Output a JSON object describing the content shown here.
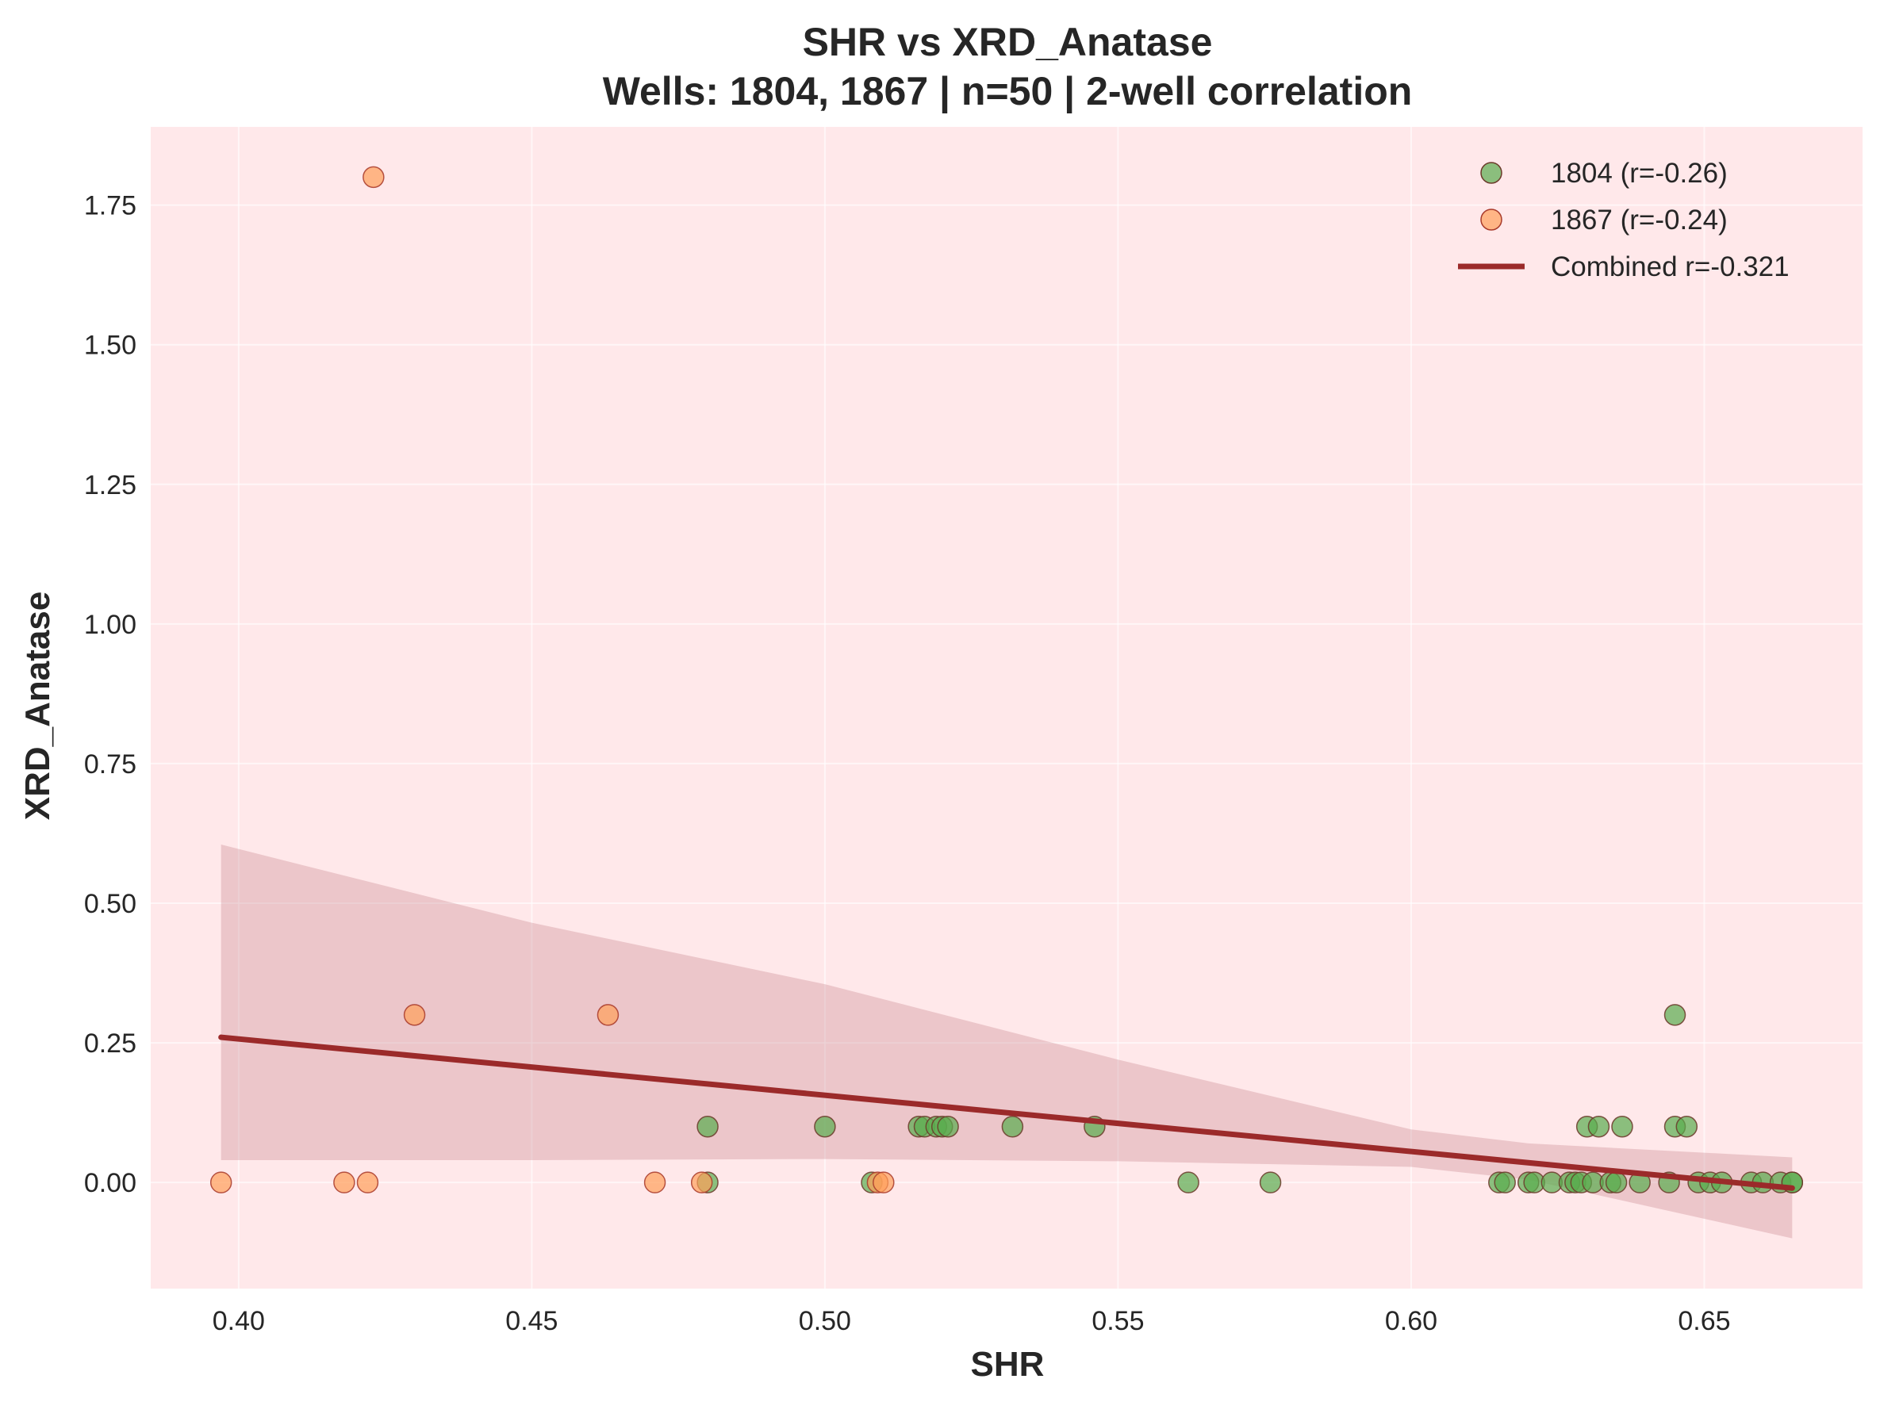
{
  "chart_data": {
    "type": "scatter",
    "title_line1": "SHR vs XRD_Anatase",
    "title_line2": "Wells: 1804, 1867 | n=50 | 2-well correlation",
    "xlabel": "SHR",
    "ylabel": "XRD_Anatase",
    "xlim": [
      0.385,
      0.677
    ],
    "ylim": [
      -0.19,
      1.89
    ],
    "xticks": [
      0.4,
      0.45,
      0.5,
      0.55,
      0.6,
      0.65
    ],
    "xtick_labels": [
      "0.40",
      "0.45",
      "0.50",
      "0.55",
      "0.60",
      "0.65"
    ],
    "yticks": [
      0.0,
      0.25,
      0.5,
      0.75,
      1.0,
      1.25,
      1.5,
      1.75
    ],
    "ytick_labels": [
      "0.00",
      "0.25",
      "0.50",
      "0.75",
      "1.00",
      "1.25",
      "1.50",
      "1.75"
    ],
    "grid": true,
    "background": "#ffe8ea",
    "legend_position": "top-right",
    "series": [
      {
        "name": "1804 (r=-0.26)",
        "color": "#5aad4e",
        "edge": "#6b3a2a",
        "points": [
          [
            0.48,
            0.1
          ],
          [
            0.48,
            0.0
          ],
          [
            0.5,
            0.1
          ],
          [
            0.508,
            0.0
          ],
          [
            0.516,
            0.1
          ],
          [
            0.517,
            0.1
          ],
          [
            0.519,
            0.1
          ],
          [
            0.52,
            0.1
          ],
          [
            0.521,
            0.1
          ],
          [
            0.532,
            0.1
          ],
          [
            0.546,
            0.1
          ],
          [
            0.562,
            0.0
          ],
          [
            0.576,
            0.0
          ],
          [
            0.615,
            0.0
          ],
          [
            0.616,
            0.0
          ],
          [
            0.62,
            0.0
          ],
          [
            0.621,
            0.0
          ],
          [
            0.624,
            0.0
          ],
          [
            0.627,
            0.0
          ],
          [
            0.628,
            0.0
          ],
          [
            0.629,
            0.0
          ],
          [
            0.63,
            0.1
          ],
          [
            0.631,
            0.0
          ],
          [
            0.632,
            0.1
          ],
          [
            0.634,
            0.0
          ],
          [
            0.635,
            0.0
          ],
          [
            0.636,
            0.1
          ],
          [
            0.639,
            0.0
          ],
          [
            0.644,
            0.0
          ],
          [
            0.645,
            0.3
          ],
          [
            0.645,
            0.1
          ],
          [
            0.647,
            0.1
          ],
          [
            0.649,
            0.0
          ],
          [
            0.651,
            0.0
          ],
          [
            0.653,
            0.0
          ],
          [
            0.658,
            0.0
          ],
          [
            0.66,
            0.0
          ],
          [
            0.663,
            0.0
          ],
          [
            0.665,
            0.0
          ],
          [
            0.665,
            0.0
          ]
        ]
      },
      {
        "name": "1867 (r=-0.24)",
        "color": "#ff9f5a",
        "edge": "#a83a2a",
        "points": [
          [
            0.397,
            0.0
          ],
          [
            0.418,
            0.0
          ],
          [
            0.422,
            0.0
          ],
          [
            0.423,
            1.8
          ],
          [
            0.43,
            0.3
          ],
          [
            0.463,
            0.3
          ],
          [
            0.471,
            0.0
          ],
          [
            0.479,
            0.0
          ],
          [
            0.509,
            0.0
          ],
          [
            0.51,
            0.0
          ]
        ]
      }
    ],
    "fit": {
      "name": "Combined r=-0.321",
      "color": "#9b2a2a",
      "x": [
        0.397,
        0.665
      ],
      "y": [
        0.26,
        -0.01
      ],
      "ci_upper": [
        [
          0.397,
          0.605
        ],
        [
          0.45,
          0.465
        ],
        [
          0.5,
          0.355
        ],
        [
          0.55,
          0.22
        ],
        [
          0.6,
          0.095
        ],
        [
          0.62,
          0.07
        ],
        [
          0.665,
          0.045
        ]
      ],
      "ci_lower": [
        [
          0.397,
          0.04
        ],
        [
          0.45,
          0.04
        ],
        [
          0.5,
          0.042
        ],
        [
          0.55,
          0.038
        ],
        [
          0.6,
          0.028
        ],
        [
          0.62,
          0.005
        ],
        [
          0.665,
          -0.1
        ]
      ]
    }
  }
}
